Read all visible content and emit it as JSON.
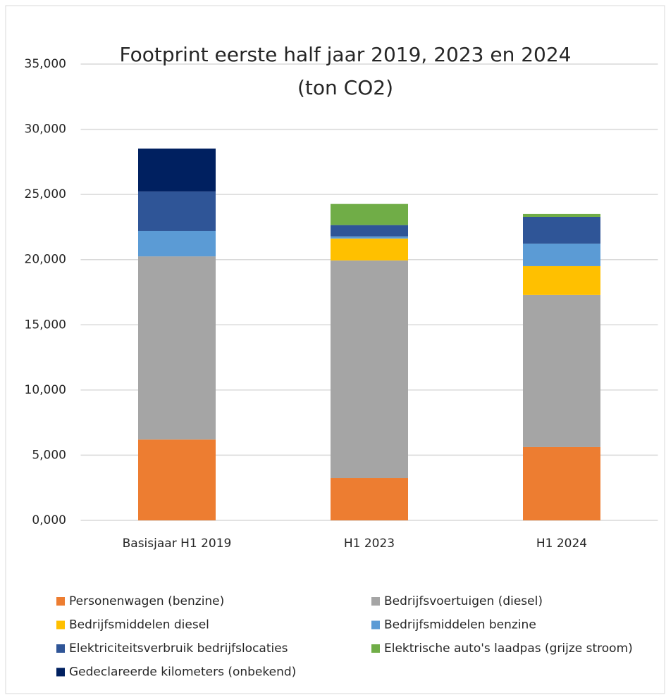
{
  "chart_data": {
    "type": "stacked_bar",
    "title": "Footprint eerste half jaar 2019, 2023 en 2024",
    "subtitle": "(ton CO2)",
    "categories": [
      "Basisjaar H1 2019",
      "H1 2023",
      "H1 2024"
    ],
    "series": [
      {
        "name": "Personenwagen (benzine)",
        "color": "#ed7d31",
        "values": [
          6200,
          3240,
          5620
        ]
      },
      {
        "name": "Bedrijfsvoertuigen (diesel)",
        "color": "#a5a5a5",
        "values": [
          14050,
          16700,
          11670
        ]
      },
      {
        "name": "Bedrijfsmiddelen diesel",
        "color": "#ffc000",
        "values": [
          0,
          1680,
          2210
        ]
      },
      {
        "name": "Bedrijfsmiddelen benzine",
        "color": "#5b9bd5",
        "values": [
          1950,
          160,
          1730
        ]
      },
      {
        "name": "Elektriciteitsverbruik bedrijfslocaties",
        "color": "#2f5597",
        "values": [
          3030,
          870,
          2050
        ]
      },
      {
        "name": "Elektrische auto's laadpas (grijze stroom)",
        "color": "#70ad47",
        "values": [
          0,
          1620,
          220
        ]
      },
      {
        "name": "Gedeclareerde kilometers (onbekend)",
        "color": "#002060",
        "values": [
          3290,
          0,
          0
        ]
      }
    ],
    "ylim": [
      0,
      35000
    ],
    "yticks": [
      {
        "value": 0,
        "label": "0,000"
      },
      {
        "value": 5000,
        "label": "5,000"
      },
      {
        "value": 10000,
        "label": "10,000"
      },
      {
        "value": 15000,
        "label": "15,000"
      },
      {
        "value": 20000,
        "label": "20,000"
      },
      {
        "value": 25000,
        "label": "25,000"
      },
      {
        "value": 30000,
        "label": "30,000"
      },
      {
        "value": 35000,
        "label": "35,000"
      }
    ],
    "grid": true,
    "legend": "bottom"
  }
}
